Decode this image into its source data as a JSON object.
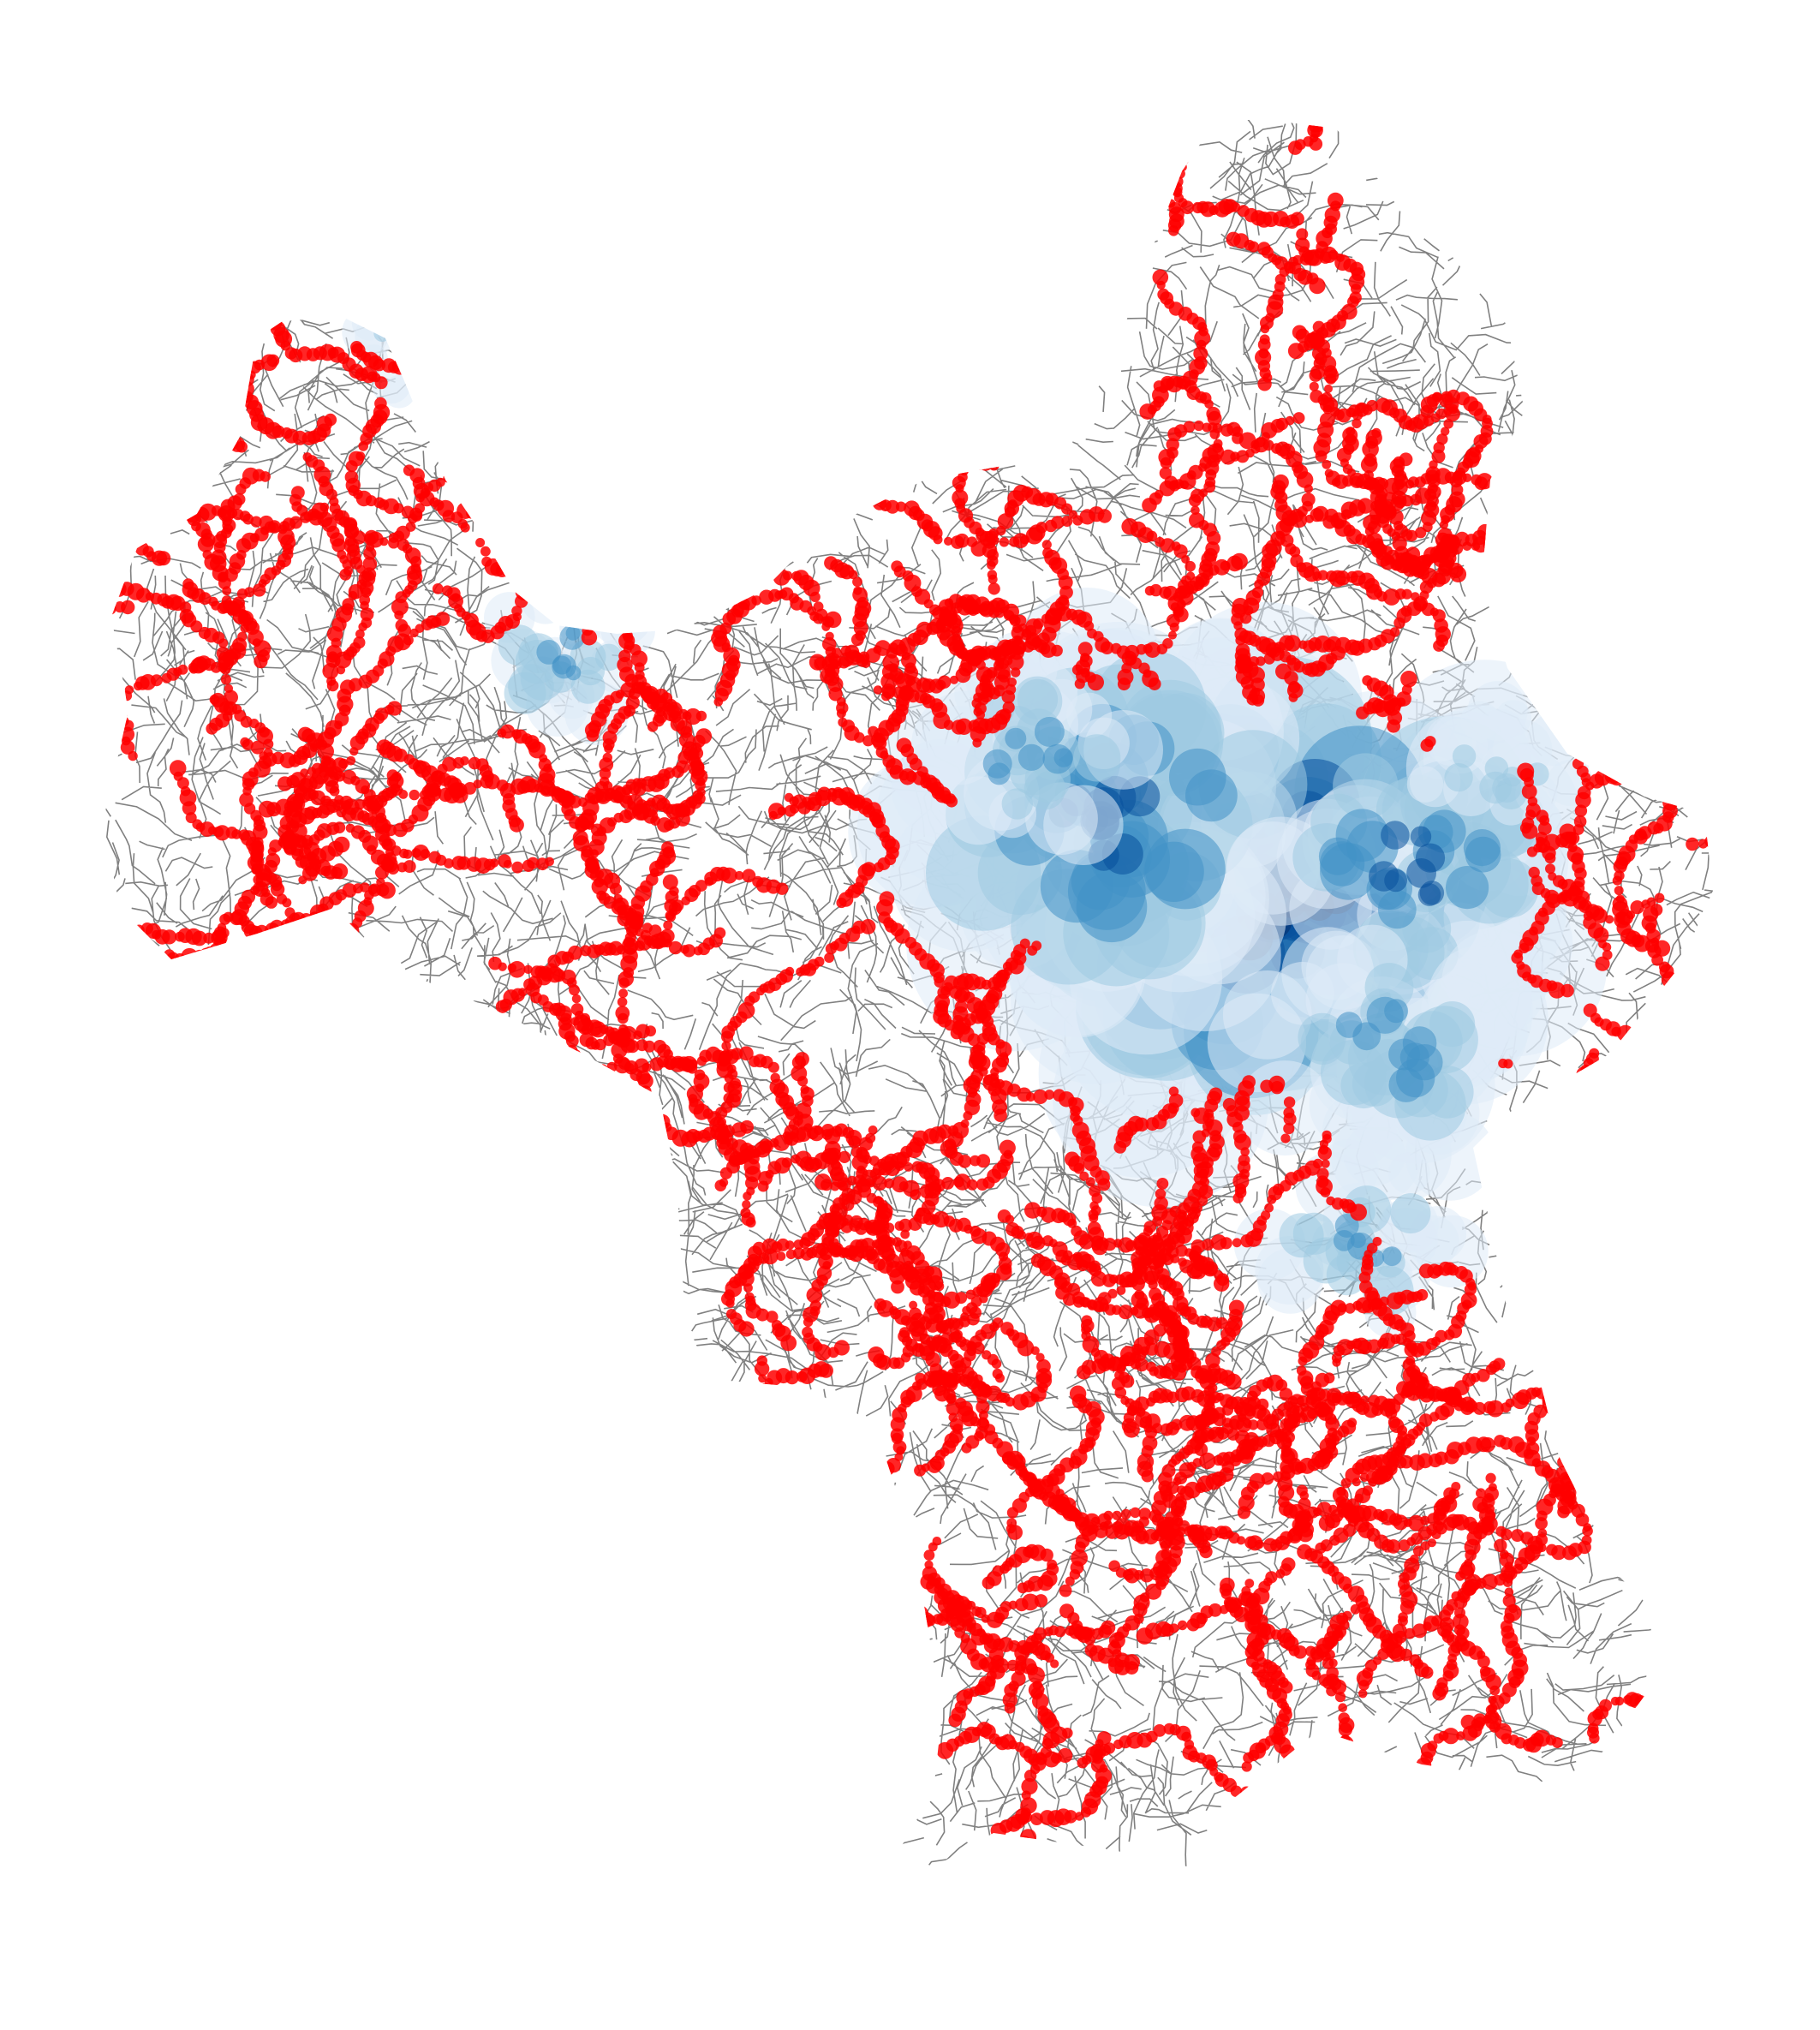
{
  "map": {
    "layers": [
      {
        "name": "road-network",
        "color": "#808080"
      },
      {
        "name": "density-surface",
        "palette": [
          "#deebf7",
          "#9ecae1",
          "#4292c6",
          "#08519c",
          "#08306b"
        ]
      },
      {
        "name": "point-markers",
        "color": "#ff0000"
      }
    ],
    "background": "#ffffff"
  }
}
